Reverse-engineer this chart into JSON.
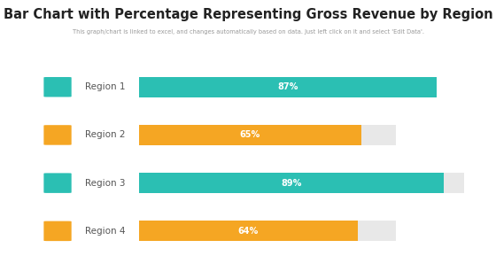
{
  "title": "Bar Chart with Percentage Representing Gross Revenue by Region",
  "subtitle": "This graph/chart is linked to excel, and changes automatically based on data. Just left click on it and select 'Edit Data'.",
  "categories": [
    "Region 1",
    "Region 2",
    "Region 3",
    "Region 4"
  ],
  "values": [
    87,
    65,
    89,
    64
  ],
  "max_bar_pct": 87,
  "bar_colors": [
    "#2bbfb3",
    "#f5a623",
    "#2bbfb3",
    "#f5a623"
  ],
  "bg_bar_color": "#e8e8e8",
  "icon_colors": [
    "#2bbfb3",
    "#f5a623",
    "#2bbfb3",
    "#f5a623"
  ],
  "bar_label_color": "#ffffff",
  "title_fontsize": 10.5,
  "subtitle_fontsize": 4.8,
  "label_fontsize": 7.5,
  "value_fontsize": 7,
  "background_color": "#ffffff",
  "text_color": "#555555",
  "bar_height": 0.42,
  "xlim_max": 100,
  "bg_bar_max": 87
}
